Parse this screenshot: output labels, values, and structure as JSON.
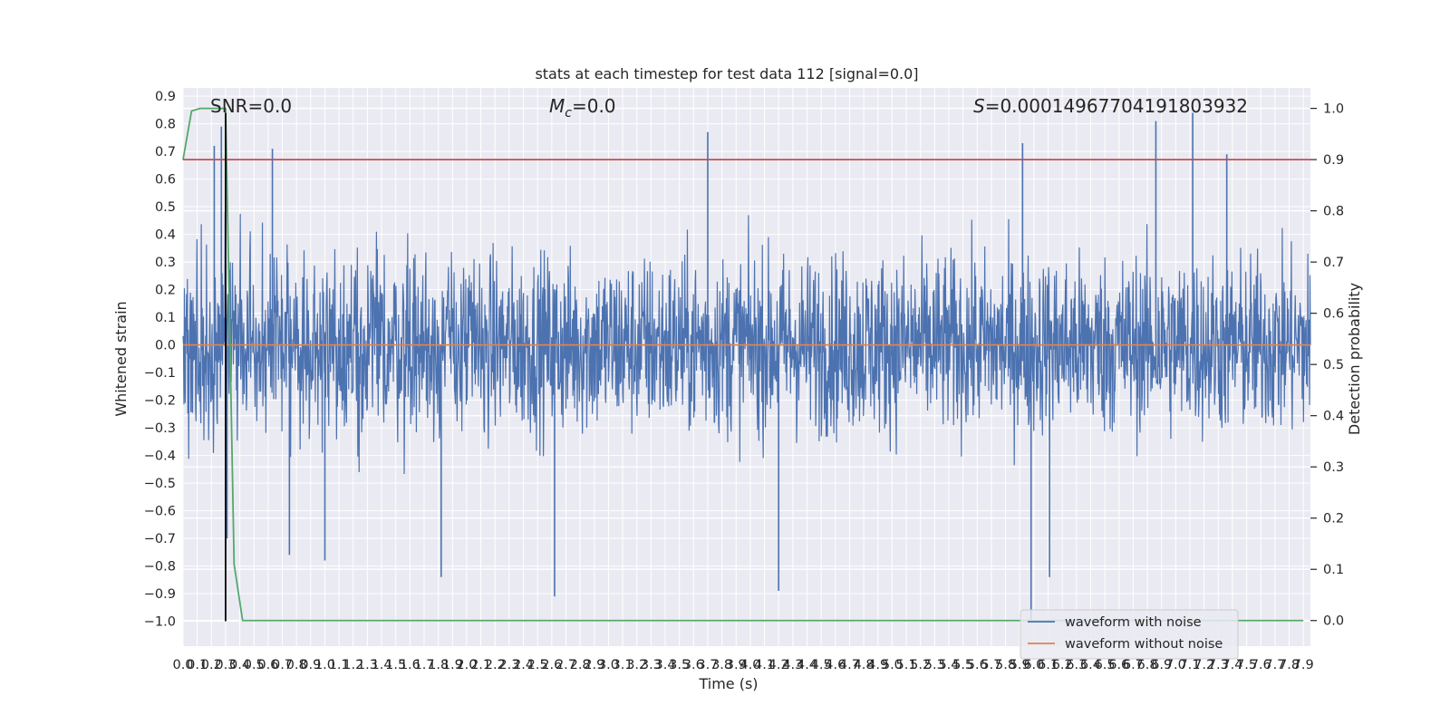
{
  "chart_data": {
    "type": "line",
    "title": "stats at each timestep for test data 112 [signal=0.0]",
    "xlabel": "Time (s)",
    "ylabel": "Whitened strain",
    "y2label": "Detection probability",
    "xlim": [
      0.0,
      7.95
    ],
    "ylim": [
      -1.09,
      0.93
    ],
    "y2lim": [
      -0.05,
      1.04
    ],
    "x_ticks": [
      0.0,
      0.1,
      0.2,
      0.3,
      0.4,
      0.5,
      0.6,
      0.7,
      0.8,
      0.9,
      1.0,
      1.1,
      1.2,
      1.3,
      1.4,
      1.5,
      1.6,
      1.7,
      1.8,
      1.9,
      2.0,
      2.1,
      2.2,
      2.3,
      2.4,
      2.5,
      2.6,
      2.7,
      2.8,
      2.9,
      3.0,
      3.1,
      3.2,
      3.3,
      3.4,
      3.5,
      3.6,
      3.7,
      3.8,
      3.9,
      4.0,
      4.1,
      4.2,
      4.3,
      4.4,
      4.5,
      4.6,
      4.7,
      4.8,
      4.9,
      5.0,
      5.1,
      5.2,
      5.3,
      5.4,
      5.5,
      5.6,
      5.7,
      5.8,
      5.9,
      6.0,
      6.1,
      6.2,
      6.3,
      6.4,
      6.5,
      6.6,
      6.7,
      6.8,
      6.9,
      7.0,
      7.1,
      7.2,
      7.3,
      7.4,
      7.5,
      7.6,
      7.7,
      7.8,
      7.9
    ],
    "x_tick_labels": [
      "0.0",
      "0.1",
      "0.2",
      "0.3",
      "0.4",
      "0.5",
      "0.6",
      "0.7",
      "0.8",
      "0.9",
      "1.0",
      "1.1",
      "1.2",
      "1.3",
      "1.4",
      "1.5",
      "1.6",
      "1.7",
      "1.8",
      "1.9",
      "2.0",
      "2.1",
      "2.2",
      "2.3",
      "2.4",
      "2.5",
      "2.6",
      "2.7",
      "2.8",
      "2.9",
      "3.0",
      "3.1",
      "3.2",
      "3.3",
      "3.4",
      "3.5",
      "3.6",
      "3.7",
      "3.8",
      "3.9",
      "4.0",
      "4.1",
      "4.2",
      "4.3",
      "4.4",
      "4.5",
      "4.6",
      "4.7",
      "4.8",
      "4.9",
      "5.0",
      "5.1",
      "5.2",
      "5.3",
      "5.4",
      "5.5",
      "5.6",
      "5.7",
      "5.8",
      "5.9",
      "6.0",
      "6.1",
      "6.2",
      "6.3",
      "6.4",
      "6.5",
      "6.6",
      "6.7",
      "6.8",
      "6.9",
      "7.0",
      "7.1",
      "7.2",
      "7.3",
      "7.4",
      "7.5",
      "7.6",
      "7.7",
      "7.8",
      "7.9"
    ],
    "y_ticks": [
      0.9,
      0.8,
      0.7,
      0.6,
      0.5,
      0.4,
      0.3,
      0.2,
      0.1,
      0.0,
      -0.1,
      -0.2,
      -0.3,
      -0.4,
      -0.5,
      -0.6,
      -0.7,
      -0.8,
      -0.9,
      -1.0
    ],
    "y_tick_labels": [
      "0.9",
      "0.8",
      "0.7",
      "0.6",
      "0.5",
      "0.4",
      "0.3",
      "0.2",
      "0.1",
      "0.0",
      "−0.1",
      "−0.2",
      "−0.3",
      "−0.4",
      "−0.5",
      "−0.6",
      "−0.7",
      "−0.8",
      "−0.9",
      "−1.0"
    ],
    "y2_ticks": [
      1.0,
      0.9,
      0.8,
      0.7,
      0.6,
      0.5,
      0.4,
      0.3,
      0.2,
      0.1,
      0.0
    ],
    "y2_tick_labels": [
      "1.0",
      "0.9",
      "0.8",
      "0.7",
      "0.6",
      "0.5",
      "0.4",
      "0.3",
      "0.2",
      "0.1",
      "0.0"
    ],
    "grid": true,
    "annotations": {
      "snr": "SNR=0.0",
      "mc_symbol": "M",
      "mc_sub": "c",
      "mc_value": "=0.0",
      "s_symbol": "S",
      "s_value": "=0.00014967704191803932"
    },
    "legend": {
      "placement": "lower-right",
      "entries": [
        "waveform with noise",
        "waveform without noise"
      ]
    },
    "series": [
      {
        "name": "waveform with noise",
        "color": "#4c72b0",
        "axis": "left",
        "description": "dense noise trace between about -0.6 and 0.6 with spikes to 0.84 and -1.0",
        "envelope": {
          "typical_amplitude": 0.42,
          "spikes": [
            {
              "x": 0.22,
              "y": 0.72
            },
            {
              "x": 0.27,
              "y": 0.79
            },
            {
              "x": 0.31,
              "y": -0.7
            },
            {
              "x": 0.63,
              "y": 0.71
            },
            {
              "x": 0.75,
              "y": -0.76
            },
            {
              "x": 1.0,
              "y": -0.78
            },
            {
              "x": 1.82,
              "y": -0.84
            },
            {
              "x": 2.62,
              "y": -0.91
            },
            {
              "x": 3.7,
              "y": 0.77
            },
            {
              "x": 4.2,
              "y": -0.89
            },
            {
              "x": 5.92,
              "y": 0.73
            },
            {
              "x": 5.98,
              "y": -1.0
            },
            {
              "x": 6.11,
              "y": -0.84
            },
            {
              "x": 6.86,
              "y": 0.81
            },
            {
              "x": 7.12,
              "y": 0.84
            },
            {
              "x": 7.36,
              "y": 0.69
            }
          ]
        }
      },
      {
        "name": "waveform without noise",
        "color": "#dd8452",
        "axis": "left",
        "x": [
          0.0,
          7.95
        ],
        "y": [
          0.0,
          0.0
        ]
      },
      {
        "color": "#55a868",
        "axis": "right",
        "x": [
          0.0,
          0.06,
          0.12,
          0.18,
          0.24,
          0.3,
          0.36,
          0.42,
          7.9
        ],
        "y": [
          0.9,
          0.995,
          1.0,
          1.0,
          1.0,
          1.0,
          0.11,
          0.0,
          0.0
        ]
      },
      {
        "color": "#c44e52",
        "axis": "right",
        "x": [
          0.0,
          7.95
        ],
        "y": [
          0.9,
          0.9
        ]
      },
      {
        "color": "#000000",
        "axis": "left",
        "x": [
          0.3,
          0.3
        ],
        "y": [
          -1.0,
          0.84
        ]
      }
    ]
  }
}
